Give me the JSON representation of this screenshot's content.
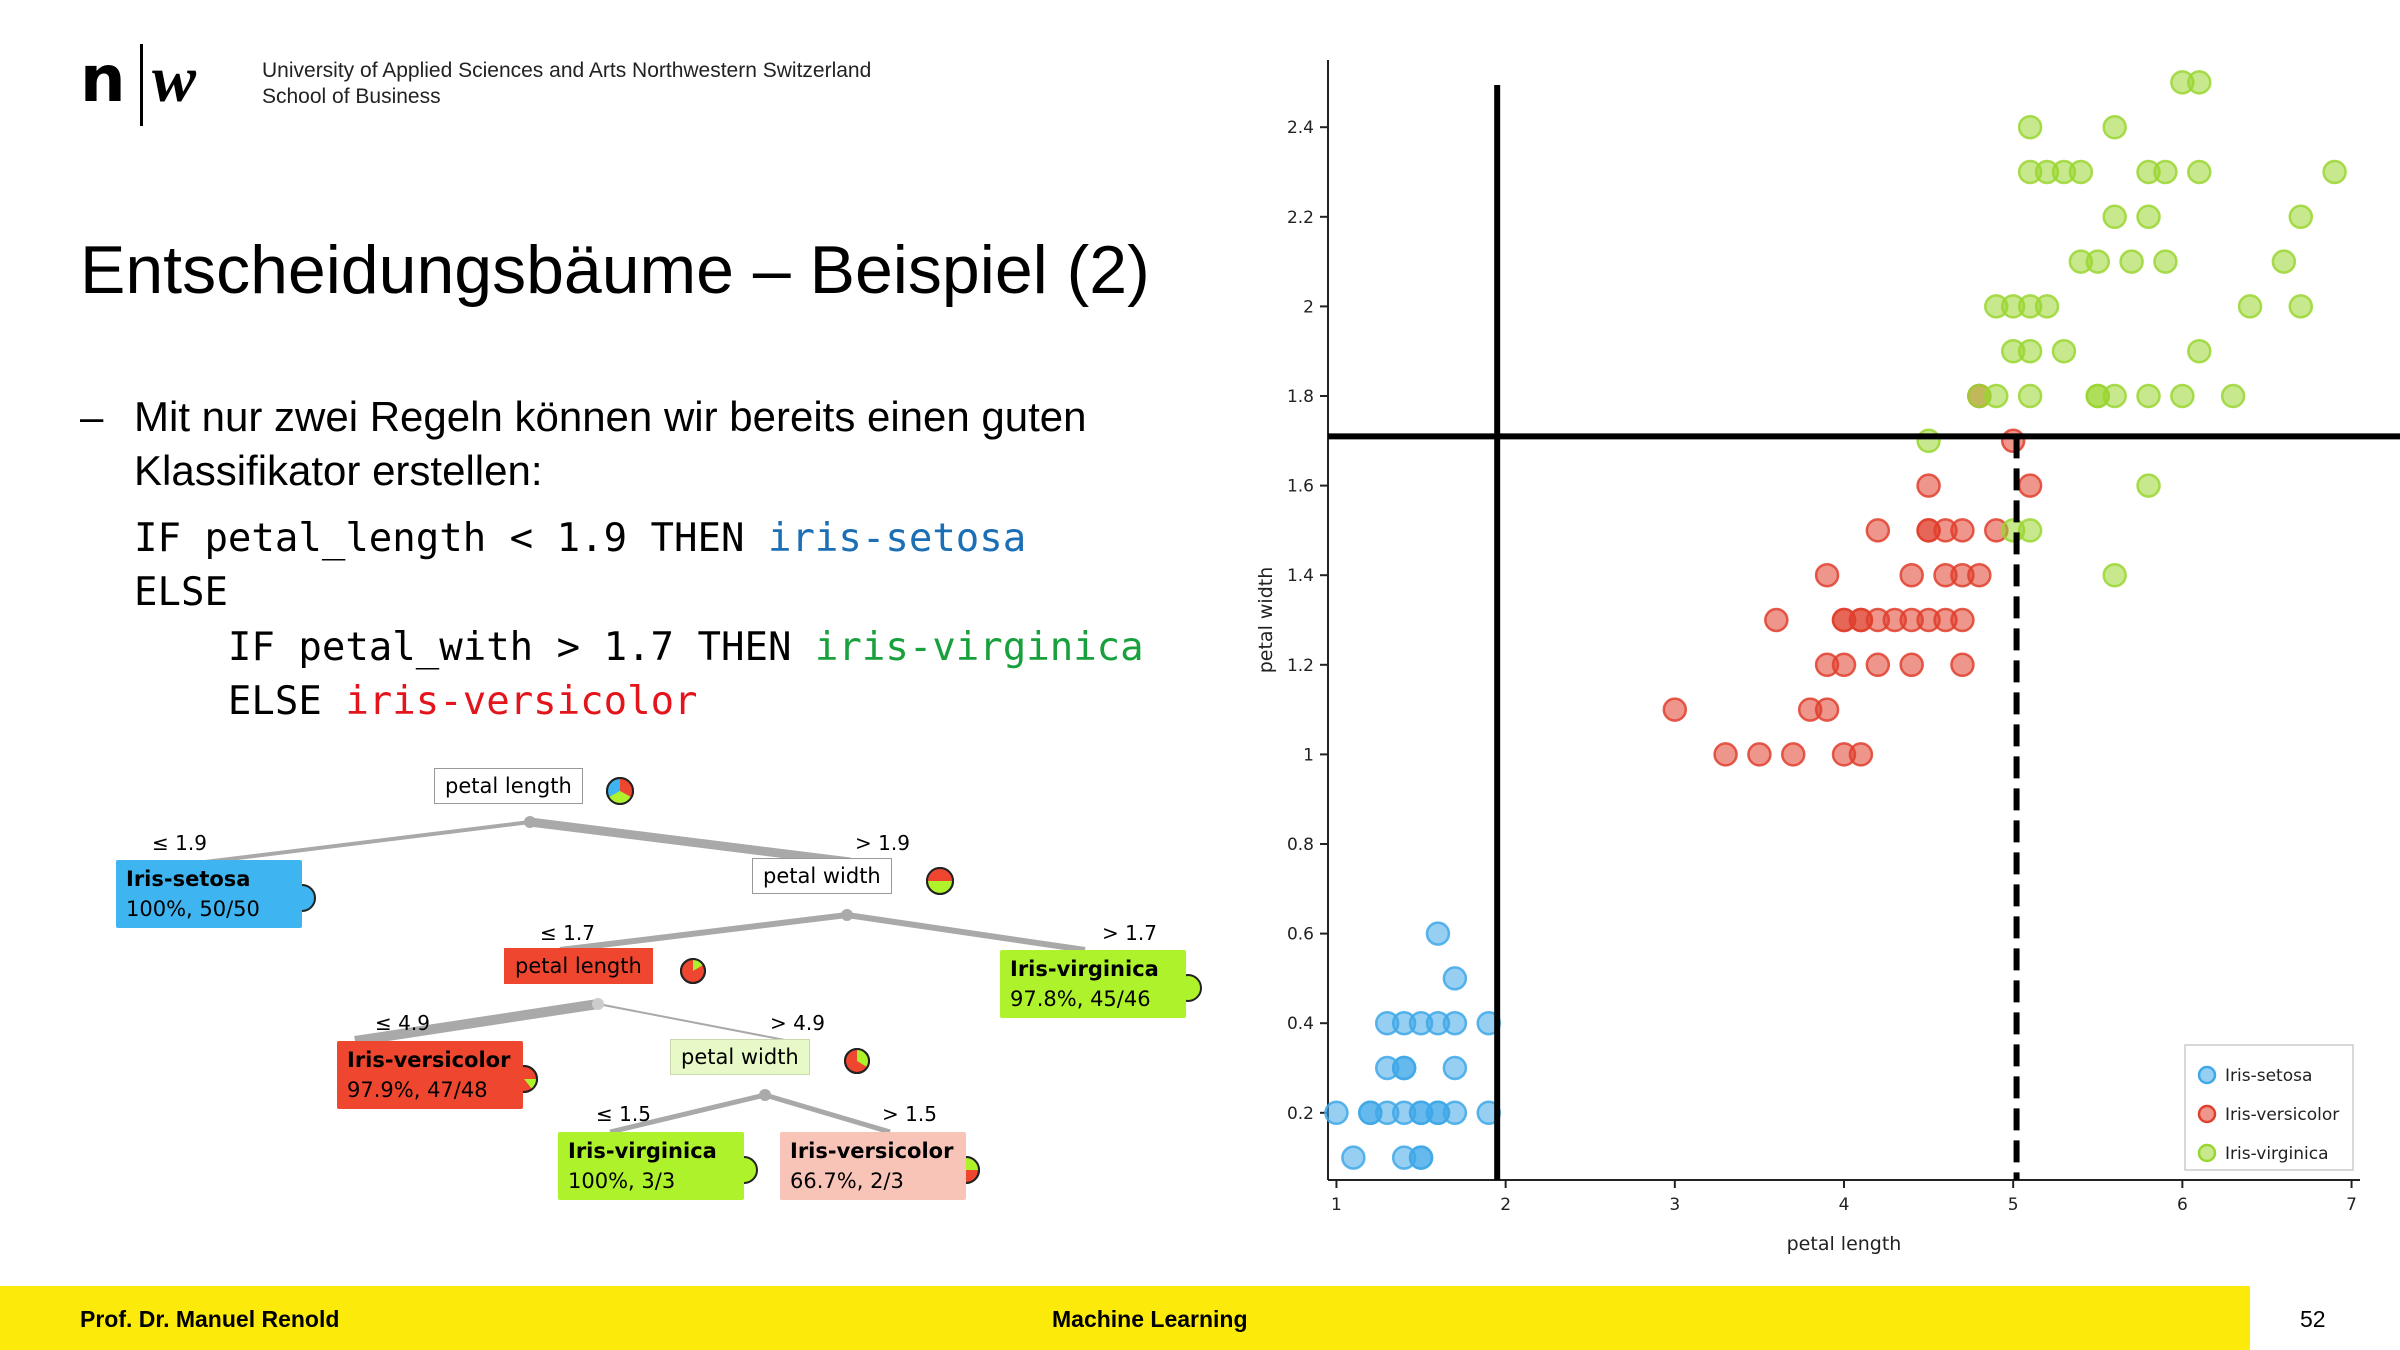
{
  "header": {
    "logo_n": "n",
    "logo_w": "w",
    "institution_line1": "University of Applied Sciences and Arts Northwestern Switzerland",
    "institution_line2": "School of Business"
  },
  "slide": {
    "title": "Entscheidungsbäume – Beispiel (2)",
    "bullet_dash": "–",
    "bullet_line1": "Mit nur zwei Regeln können wir bereits einen guten",
    "bullet_line2": "Klassifikator erstellen:",
    "code": {
      "l1_prefix": "IF petal_length < 1.9 THEN ",
      "l1_class": "iris-setosa",
      "l2": "ELSE",
      "l3_prefix": "    IF petal_with > 1.7 THEN ",
      "l3_class": "iris-virginica",
      "l4_prefix": "    ELSE ",
      "l4_class": "iris-versicolor"
    }
  },
  "tree": {
    "root": "petal length",
    "edge_le19": "≤ 1.9",
    "edge_gt19": "> 1.9",
    "setosa_name": "Iris-setosa",
    "setosa_stats": "100%, 50/50",
    "node_pw": "petal width",
    "edge_le17": "≤ 1.7",
    "edge_gt17": "> 1.7",
    "node_pl2": "petal length",
    "virg1_name": "Iris-virginica",
    "virg1_stats": "97.8%, 45/46",
    "edge_le49": "≤ 4.9",
    "edge_gt49": "> 4.9",
    "vers1_name": "Iris-versicolor",
    "vers1_stats": "97.9%, 47/48",
    "node_pw2": "petal width",
    "edge_le15": "≤ 1.5",
    "edge_gt15": "> 1.5",
    "virg2_name": "Iris-virginica",
    "virg2_stats": "100%, 3/3",
    "vers2_name": "Iris-versicolor",
    "vers2_stats": "66.7%, 2/3",
    "colors": {
      "setosa": "#3eb5f1",
      "versicolor": "#ef4630",
      "virginica": "#aef22b",
      "versicolor_light": "#f9c4b8",
      "virginica_light": "#e6f9c6"
    }
  },
  "chart_data": {
    "type": "scatter",
    "xlabel": "petal length",
    "ylabel": "petal width",
    "xlim": [
      0.95,
      7.05
    ],
    "ylim": [
      0.05,
      2.55
    ],
    "xticks": [
      1,
      2,
      3,
      4,
      5,
      6,
      7
    ],
    "yticks": [
      0.2,
      0.4,
      0.6,
      0.8,
      1,
      1.2,
      1.4,
      1.6,
      1.8,
      2,
      2.2,
      2.4
    ],
    "ytick_labels": [
      "0.2",
      "0.4",
      "0.6",
      "0.8",
      "1",
      "1.2",
      "1.4",
      "1.6",
      "1.8",
      "2",
      "2.2",
      "2.4"
    ],
    "legend_position": "bottom-right",
    "decision_lines": [
      {
        "orientation": "vertical",
        "x": 1.95,
        "style": "solid"
      },
      {
        "orientation": "horizontal",
        "y": 1.71,
        "style": "solid"
      },
      {
        "orientation": "vertical",
        "x": 5.02,
        "style": "dashed"
      }
    ],
    "series": [
      {
        "name": "Iris-setosa",
        "color": "#3fa8e8",
        "points": [
          [
            1.0,
            0.2
          ],
          [
            1.1,
            0.1
          ],
          [
            1.2,
            0.2
          ],
          [
            1.3,
            0.2
          ],
          [
            1.3,
            0.3
          ],
          [
            1.4,
            0.2
          ],
          [
            1.4,
            0.3
          ],
          [
            1.4,
            0.1
          ],
          [
            1.5,
            0.2
          ],
          [
            1.5,
            0.4
          ],
          [
            1.5,
            0.1
          ],
          [
            1.5,
            0.2
          ],
          [
            1.6,
            0.2
          ],
          [
            1.6,
            0.4
          ],
          [
            1.6,
            0.6
          ],
          [
            1.7,
            0.2
          ],
          [
            1.7,
            0.4
          ],
          [
            1.7,
            0.5
          ],
          [
            1.7,
            0.3
          ],
          [
            1.9,
            0.2
          ],
          [
            1.9,
            0.4
          ],
          [
            1.3,
            0.4
          ],
          [
            1.4,
            0.4
          ],
          [
            1.2,
            0.2
          ],
          [
            1.5,
            0.1
          ],
          [
            1.4,
            0.3
          ],
          [
            1.6,
            0.2
          ]
        ]
      },
      {
        "name": "Iris-versicolor",
        "color": "#e0402e",
        "points": [
          [
            3.0,
            1.1
          ],
          [
            3.3,
            1.0
          ],
          [
            3.5,
            1.0
          ],
          [
            3.6,
            1.3
          ],
          [
            3.7,
            1.0
          ],
          [
            3.8,
            1.1
          ],
          [
            3.9,
            1.1
          ],
          [
            3.9,
            1.2
          ],
          [
            3.9,
            1.4
          ],
          [
            4.0,
            1.0
          ],
          [
            4.0,
            1.2
          ],
          [
            4.0,
            1.3
          ],
          [
            4.1,
            1.0
          ],
          [
            4.1,
            1.3
          ],
          [
            4.2,
            1.2
          ],
          [
            4.2,
            1.3
          ],
          [
            4.2,
            1.5
          ],
          [
            4.3,
            1.3
          ],
          [
            4.4,
            1.2
          ],
          [
            4.4,
            1.3
          ],
          [
            4.4,
            1.4
          ],
          [
            4.5,
            1.3
          ],
          [
            4.5,
            1.5
          ],
          [
            4.5,
            1.6
          ],
          [
            4.6,
            1.3
          ],
          [
            4.6,
            1.4
          ],
          [
            4.6,
            1.5
          ],
          [
            4.7,
            1.2
          ],
          [
            4.7,
            1.3
          ],
          [
            4.7,
            1.4
          ],
          [
            4.7,
            1.5
          ],
          [
            4.8,
            1.4
          ],
          [
            4.8,
            1.8
          ],
          [
            4.9,
            1.5
          ],
          [
            5.0,
            1.7
          ],
          [
            5.1,
            1.6
          ],
          [
            4.0,
            1.3
          ],
          [
            4.5,
            1.5
          ],
          [
            4.1,
            1.3
          ]
        ]
      },
      {
        "name": "Iris-virginica",
        "color": "#9ad631",
        "points": [
          [
            4.5,
            1.7
          ],
          [
            4.8,
            1.8
          ],
          [
            4.9,
            1.8
          ],
          [
            4.9,
            2.0
          ],
          [
            5.0,
            1.5
          ],
          [
            5.0,
            2.0
          ],
          [
            5.0,
            1.9
          ],
          [
            5.1,
            1.5
          ],
          [
            5.1,
            1.8
          ],
          [
            5.1,
            1.9
          ],
          [
            5.1,
            2.0
          ],
          [
            5.1,
            2.3
          ],
          [
            5.1,
            2.4
          ],
          [
            5.2,
            2.0
          ],
          [
            5.2,
            2.3
          ],
          [
            5.3,
            1.9
          ],
          [
            5.3,
            2.3
          ],
          [
            5.4,
            2.1
          ],
          [
            5.4,
            2.3
          ],
          [
            5.5,
            1.8
          ],
          [
            5.5,
            2.1
          ],
          [
            5.6,
            1.4
          ],
          [
            5.6,
            1.8
          ],
          [
            5.6,
            2.2
          ],
          [
            5.6,
            2.4
          ],
          [
            5.7,
            2.1
          ],
          [
            5.8,
            1.8
          ],
          [
            5.8,
            1.6
          ],
          [
            5.8,
            2.2
          ],
          [
            5.8,
            2.3
          ],
          [
            5.9,
            2.1
          ],
          [
            5.9,
            2.3
          ],
          [
            6.0,
            1.8
          ],
          [
            6.0,
            2.5
          ],
          [
            6.1,
            1.9
          ],
          [
            6.1,
            2.3
          ],
          [
            6.1,
            2.5
          ],
          [
            6.3,
            1.8
          ],
          [
            6.6,
            2.1
          ],
          [
            6.7,
            2.0
          ],
          [
            6.7,
            2.2
          ],
          [
            6.9,
            2.3
          ],
          [
            5.5,
            1.8
          ],
          [
            6.4,
            2.0
          ]
        ]
      }
    ]
  },
  "footer": {
    "author": "Prof. Dr. Manuel Renold",
    "course": "Machine Learning",
    "page": "52"
  }
}
